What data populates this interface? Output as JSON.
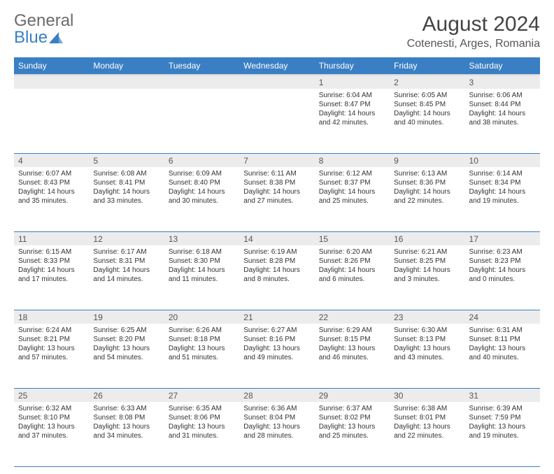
{
  "logo": {
    "gray": "General",
    "blue": "Blue"
  },
  "title": "August 2024",
  "location": "Cotenesti, Arges, Romania",
  "colors": {
    "header_bg": "#3a7fc4",
    "header_fg": "#ffffff",
    "daynum_bg": "#ececec",
    "border": "#3a7fc4",
    "text": "#333333"
  },
  "day_headers": [
    "Sunday",
    "Monday",
    "Tuesday",
    "Wednesday",
    "Thursday",
    "Friday",
    "Saturday"
  ],
  "weeks": [
    [
      {
        "num": "",
        "lines": []
      },
      {
        "num": "",
        "lines": []
      },
      {
        "num": "",
        "lines": []
      },
      {
        "num": "",
        "lines": []
      },
      {
        "num": "1",
        "lines": [
          "Sunrise: 6:04 AM",
          "Sunset: 8:47 PM",
          "Daylight: 14 hours",
          "and 42 minutes."
        ]
      },
      {
        "num": "2",
        "lines": [
          "Sunrise: 6:05 AM",
          "Sunset: 8:45 PM",
          "Daylight: 14 hours",
          "and 40 minutes."
        ]
      },
      {
        "num": "3",
        "lines": [
          "Sunrise: 6:06 AM",
          "Sunset: 8:44 PM",
          "Daylight: 14 hours",
          "and 38 minutes."
        ]
      }
    ],
    [
      {
        "num": "4",
        "lines": [
          "Sunrise: 6:07 AM",
          "Sunset: 8:43 PM",
          "Daylight: 14 hours",
          "and 35 minutes."
        ]
      },
      {
        "num": "5",
        "lines": [
          "Sunrise: 6:08 AM",
          "Sunset: 8:41 PM",
          "Daylight: 14 hours",
          "and 33 minutes."
        ]
      },
      {
        "num": "6",
        "lines": [
          "Sunrise: 6:09 AM",
          "Sunset: 8:40 PM",
          "Daylight: 14 hours",
          "and 30 minutes."
        ]
      },
      {
        "num": "7",
        "lines": [
          "Sunrise: 6:11 AM",
          "Sunset: 8:38 PM",
          "Daylight: 14 hours",
          "and 27 minutes."
        ]
      },
      {
        "num": "8",
        "lines": [
          "Sunrise: 6:12 AM",
          "Sunset: 8:37 PM",
          "Daylight: 14 hours",
          "and 25 minutes."
        ]
      },
      {
        "num": "9",
        "lines": [
          "Sunrise: 6:13 AM",
          "Sunset: 8:36 PM",
          "Daylight: 14 hours",
          "and 22 minutes."
        ]
      },
      {
        "num": "10",
        "lines": [
          "Sunrise: 6:14 AM",
          "Sunset: 8:34 PM",
          "Daylight: 14 hours",
          "and 19 minutes."
        ]
      }
    ],
    [
      {
        "num": "11",
        "lines": [
          "Sunrise: 6:15 AM",
          "Sunset: 8:33 PM",
          "Daylight: 14 hours",
          "and 17 minutes."
        ]
      },
      {
        "num": "12",
        "lines": [
          "Sunrise: 6:17 AM",
          "Sunset: 8:31 PM",
          "Daylight: 14 hours",
          "and 14 minutes."
        ]
      },
      {
        "num": "13",
        "lines": [
          "Sunrise: 6:18 AM",
          "Sunset: 8:30 PM",
          "Daylight: 14 hours",
          "and 11 minutes."
        ]
      },
      {
        "num": "14",
        "lines": [
          "Sunrise: 6:19 AM",
          "Sunset: 8:28 PM",
          "Daylight: 14 hours",
          "and 8 minutes."
        ]
      },
      {
        "num": "15",
        "lines": [
          "Sunrise: 6:20 AM",
          "Sunset: 8:26 PM",
          "Daylight: 14 hours",
          "and 6 minutes."
        ]
      },
      {
        "num": "16",
        "lines": [
          "Sunrise: 6:21 AM",
          "Sunset: 8:25 PM",
          "Daylight: 14 hours",
          "and 3 minutes."
        ]
      },
      {
        "num": "17",
        "lines": [
          "Sunrise: 6:23 AM",
          "Sunset: 8:23 PM",
          "Daylight: 14 hours",
          "and 0 minutes."
        ]
      }
    ],
    [
      {
        "num": "18",
        "lines": [
          "Sunrise: 6:24 AM",
          "Sunset: 8:21 PM",
          "Daylight: 13 hours",
          "and 57 minutes."
        ]
      },
      {
        "num": "19",
        "lines": [
          "Sunrise: 6:25 AM",
          "Sunset: 8:20 PM",
          "Daylight: 13 hours",
          "and 54 minutes."
        ]
      },
      {
        "num": "20",
        "lines": [
          "Sunrise: 6:26 AM",
          "Sunset: 8:18 PM",
          "Daylight: 13 hours",
          "and 51 minutes."
        ]
      },
      {
        "num": "21",
        "lines": [
          "Sunrise: 6:27 AM",
          "Sunset: 8:16 PM",
          "Daylight: 13 hours",
          "and 49 minutes."
        ]
      },
      {
        "num": "22",
        "lines": [
          "Sunrise: 6:29 AM",
          "Sunset: 8:15 PM",
          "Daylight: 13 hours",
          "and 46 minutes."
        ]
      },
      {
        "num": "23",
        "lines": [
          "Sunrise: 6:30 AM",
          "Sunset: 8:13 PM",
          "Daylight: 13 hours",
          "and 43 minutes."
        ]
      },
      {
        "num": "24",
        "lines": [
          "Sunrise: 6:31 AM",
          "Sunset: 8:11 PM",
          "Daylight: 13 hours",
          "and 40 minutes."
        ]
      }
    ],
    [
      {
        "num": "25",
        "lines": [
          "Sunrise: 6:32 AM",
          "Sunset: 8:10 PM",
          "Daylight: 13 hours",
          "and 37 minutes."
        ]
      },
      {
        "num": "26",
        "lines": [
          "Sunrise: 6:33 AM",
          "Sunset: 8:08 PM",
          "Daylight: 13 hours",
          "and 34 minutes."
        ]
      },
      {
        "num": "27",
        "lines": [
          "Sunrise: 6:35 AM",
          "Sunset: 8:06 PM",
          "Daylight: 13 hours",
          "and 31 minutes."
        ]
      },
      {
        "num": "28",
        "lines": [
          "Sunrise: 6:36 AM",
          "Sunset: 8:04 PM",
          "Daylight: 13 hours",
          "and 28 minutes."
        ]
      },
      {
        "num": "29",
        "lines": [
          "Sunrise: 6:37 AM",
          "Sunset: 8:02 PM",
          "Daylight: 13 hours",
          "and 25 minutes."
        ]
      },
      {
        "num": "30",
        "lines": [
          "Sunrise: 6:38 AM",
          "Sunset: 8:01 PM",
          "Daylight: 13 hours",
          "and 22 minutes."
        ]
      },
      {
        "num": "31",
        "lines": [
          "Sunrise: 6:39 AM",
          "Sunset: 7:59 PM",
          "Daylight: 13 hours",
          "and 19 minutes."
        ]
      }
    ]
  ]
}
